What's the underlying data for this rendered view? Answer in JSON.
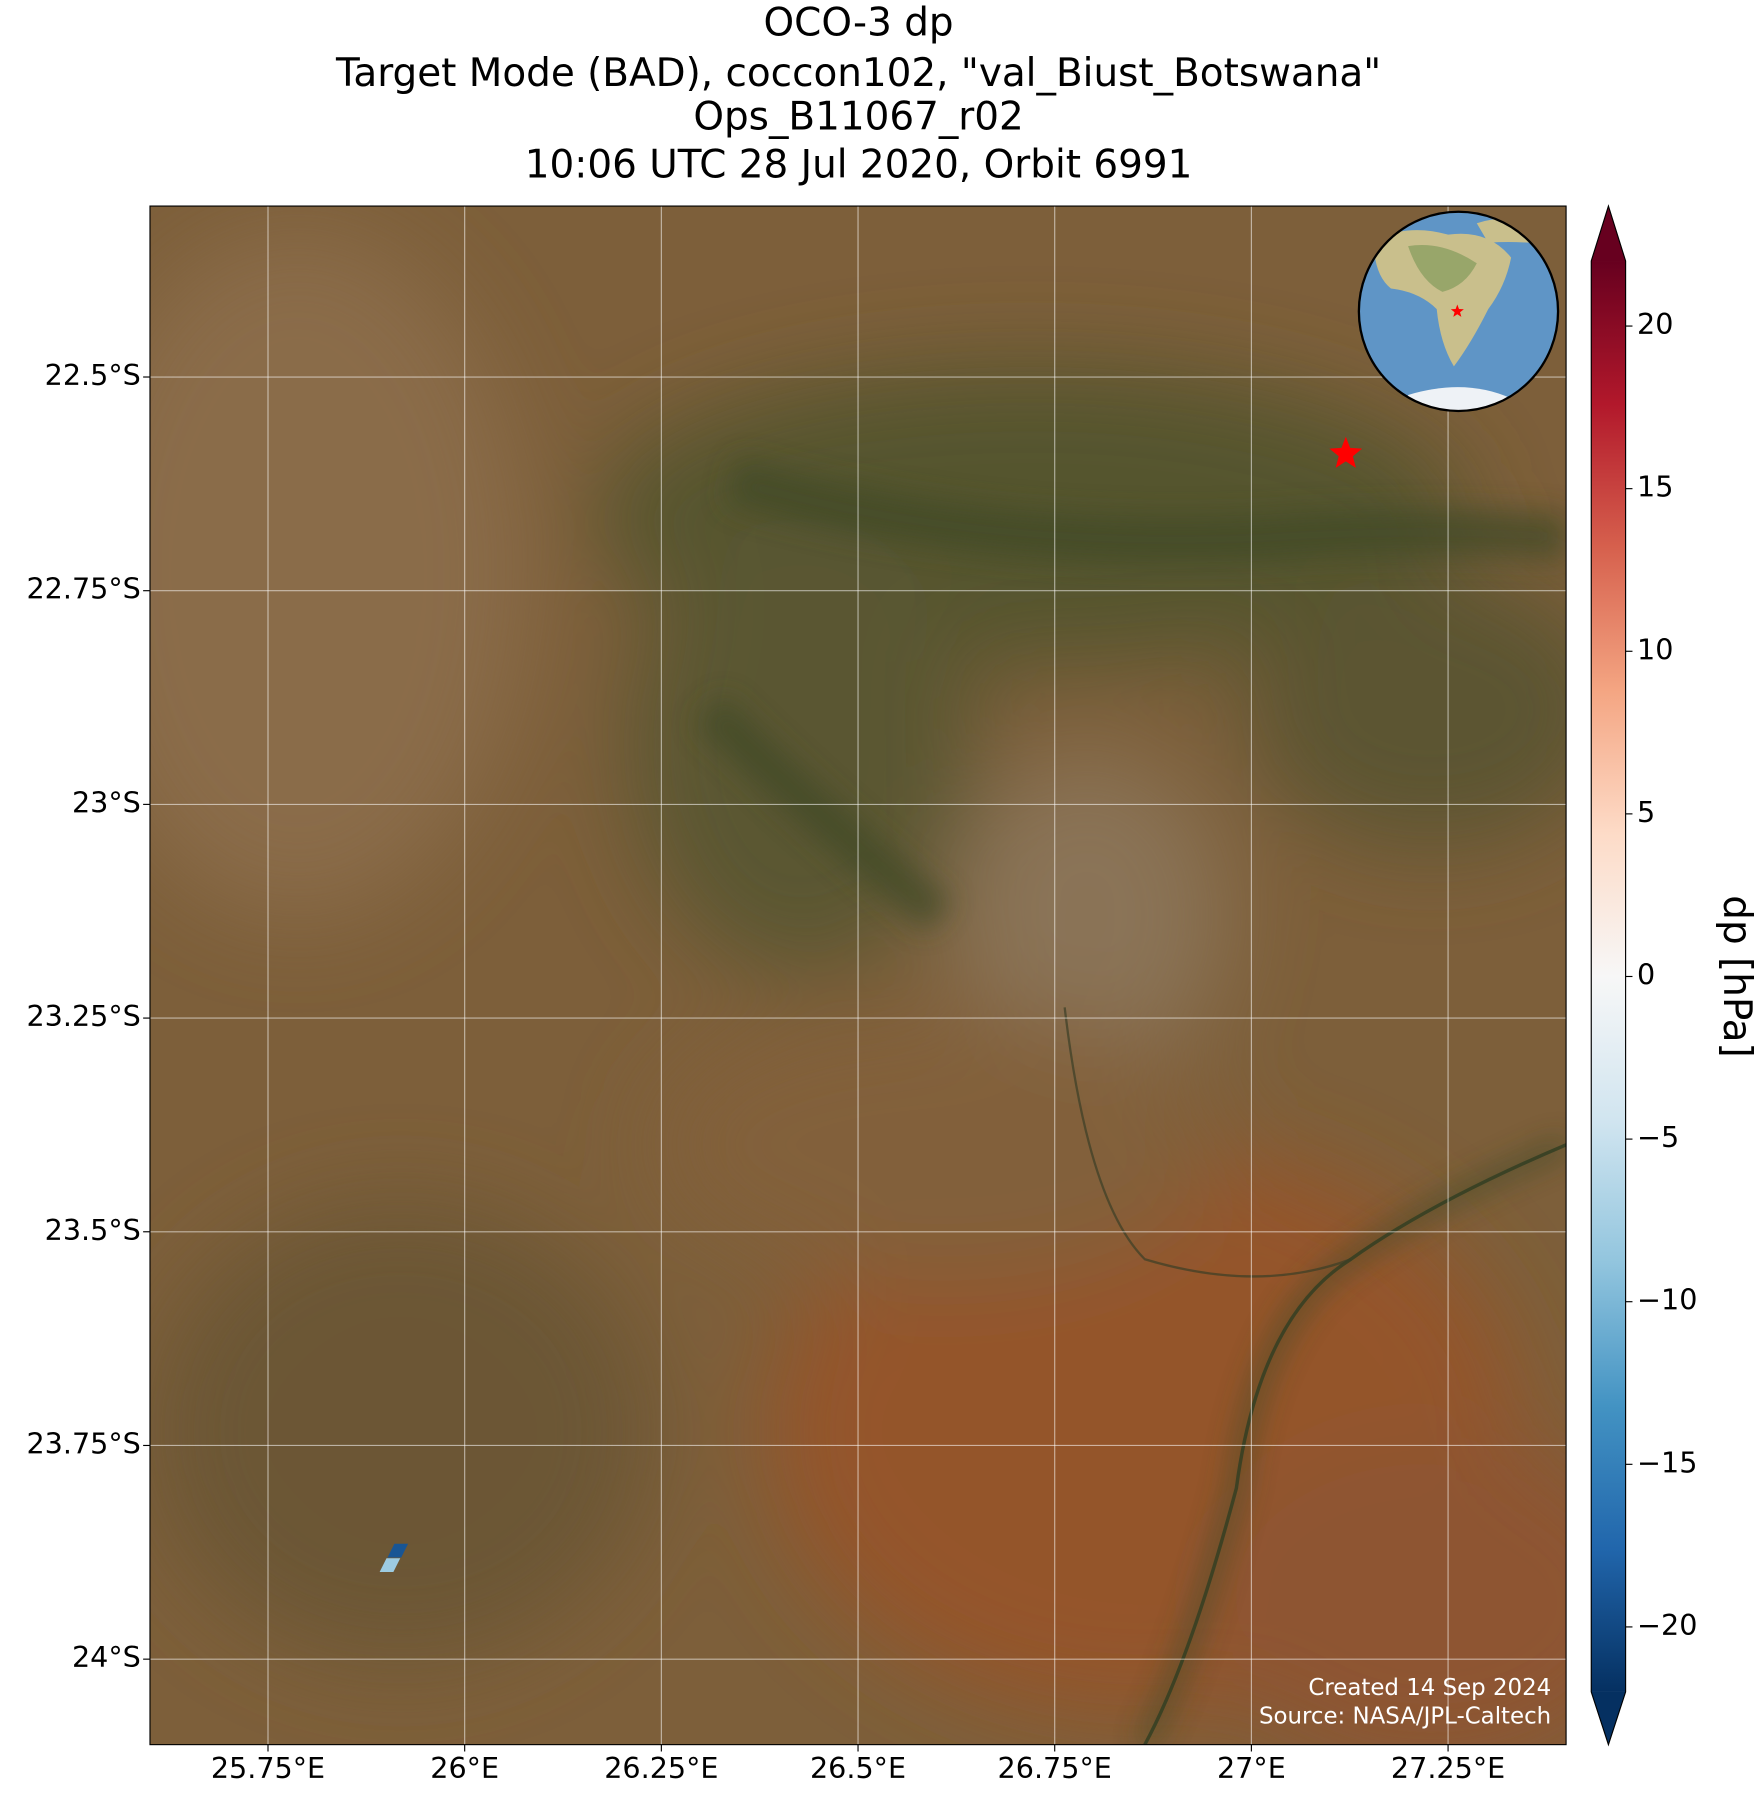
{
  "chart_data": {
    "type": "map",
    "title": [
      "OCO-3 dp",
      "Target Mode (BAD), coccon102, \"val_Biust_Botswana\"",
      "Ops_B11067_r02",
      "10:06 UTC 28 Jul 2020, Orbit 6991"
    ],
    "xlim": [
      25.6,
      27.4
    ],
    "ylim": [
      -22.3,
      -24.1
    ],
    "xticks": [
      {
        "value": 25.75,
        "label": "25.75°E"
      },
      {
        "value": 26,
        "label": "26°E"
      },
      {
        "value": 26.25,
        "label": "26.25°E"
      },
      {
        "value": 26.5,
        "label": "26.5°E"
      },
      {
        "value": 26.75,
        "label": "26.75°E"
      },
      {
        "value": 27,
        "label": "27°E"
      },
      {
        "value": 27.25,
        "label": "27.25°E"
      }
    ],
    "yticks": [
      {
        "value": -22.5,
        "label": "22.5°S"
      },
      {
        "value": -22.75,
        "label": "22.75°S"
      },
      {
        "value": -23,
        "label": "23°S"
      },
      {
        "value": -23.25,
        "label": "23.25°S"
      },
      {
        "value": -23.5,
        "label": "23.5°S"
      },
      {
        "value": -23.75,
        "label": "23.75°S"
      },
      {
        "value": -24,
        "label": "24°S"
      }
    ],
    "grid": true,
    "site": {
      "lon": 27.12,
      "lat": -22.59,
      "color": "#ff0000"
    },
    "soundings": [
      {
        "lon": 25.905,
        "lat": -23.89,
        "value": -8
      },
      {
        "lon": 25.915,
        "lat": -23.873,
        "value": -19
      }
    ],
    "colorbar": {
      "label": "dp [hPa]",
      "lim": [
        -22,
        22
      ],
      "ticks": [
        {
          "value": 20,
          "label": "20"
        },
        {
          "value": 15,
          "label": "15"
        },
        {
          "value": 10,
          "label": "10"
        },
        {
          "value": 5,
          "label": "5"
        },
        {
          "value": 0,
          "label": "0"
        },
        {
          "value": -5,
          "label": "−5"
        },
        {
          "value": -10,
          "label": "−10"
        },
        {
          "value": -15,
          "label": "−15"
        },
        {
          "value": -20,
          "label": "−20"
        }
      ],
      "colors": [
        "#053061",
        "#2166ac",
        "#4393c3",
        "#92c5de",
        "#d1e5f0",
        "#f7f7f7",
        "#fddbc7",
        "#f4a582",
        "#d6604d",
        "#b2182b",
        "#67001f"
      ]
    },
    "annotations": [
      "Created 14 Sep 2024",
      "Source: NASA/JPL-Caltech"
    ]
  }
}
